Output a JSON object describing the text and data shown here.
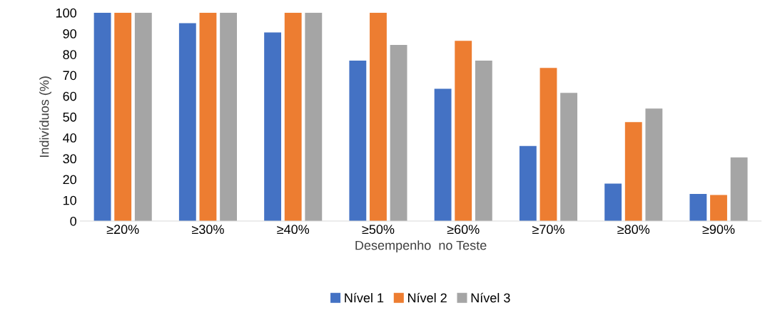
{
  "chart_data": {
    "type": "bar",
    "xlabel": "Desempenho  no Teste",
    "ylabel": "Indivíduos (%)",
    "categories": [
      "≥20%",
      "≥30%",
      "≥40%",
      "≥50%",
      "≥60%",
      "≥70%",
      "≥80%",
      "≥90%"
    ],
    "series": [
      {
        "name": "Nível 1",
        "color": "#4472c4",
        "values": [
          100,
          95,
          90.5,
          77,
          63.5,
          36,
          18,
          13
        ]
      },
      {
        "name": "Nível 2",
        "color": "#ed7d31",
        "values": [
          100,
          100,
          100,
          100,
          86.5,
          73.5,
          47.5,
          12.5
        ]
      },
      {
        "name": "Nível 3",
        "color": "#a5a5a5",
        "values": [
          100,
          100,
          100,
          84.5,
          77,
          61.5,
          54,
          30.5
        ]
      }
    ],
    "ylim": [
      0,
      100
    ],
    "yticks": [
      0,
      10,
      20,
      30,
      40,
      50,
      60,
      70,
      80,
      90,
      100
    ],
    "grid": false,
    "legend": "bottom"
  }
}
